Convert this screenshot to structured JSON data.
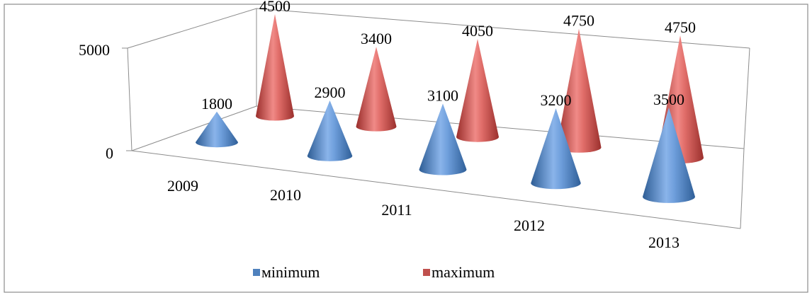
{
  "chart_data": {
    "type": "bar",
    "subtype": "3d-cone",
    "title": "",
    "categories": [
      "2009",
      "2010",
      "2011",
      "2012",
      "2013"
    ],
    "series": [
      {
        "name": "мinimum",
        "values": [
          1800,
          2900,
          3100,
          3200,
          3500
        ],
        "color": "#4f81bd"
      },
      {
        "name": "maximum",
        "values": [
          4500,
          3400,
          4050,
          4750,
          4750
        ],
        "color": "#c0504d"
      }
    ],
    "y_ticks": [
      "0",
      "5000"
    ],
    "ylim": [
      0,
      5000
    ],
    "grid": false,
    "legend": "bottom",
    "data_labels": true
  }
}
